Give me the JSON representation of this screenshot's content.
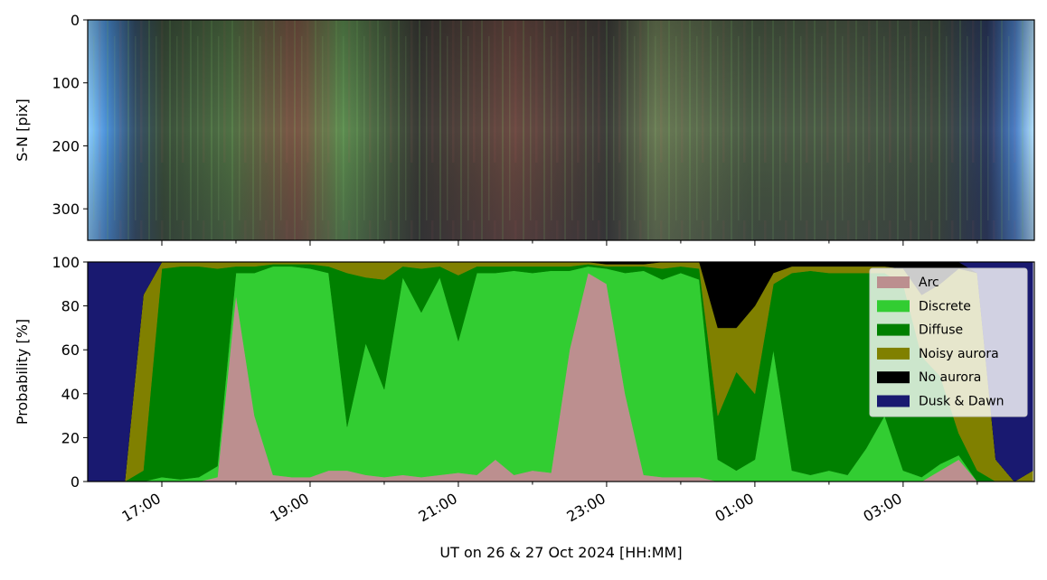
{
  "chart_data": [
    {
      "type": "image",
      "ylabel": "S-N [pix]",
      "ylim": [
        350,
        0
      ],
      "yticks": [
        0,
        100,
        200,
        300
      ],
      "xlim": [
        16,
        28.77
      ],
      "xticks": [
        17,
        19,
        21,
        23,
        25,
        27
      ],
      "xminorticks": [
        18,
        20,
        22,
        24,
        26,
        28
      ]
    },
    {
      "type": "stacked-area",
      "ylabel": "Probability [%]",
      "xlabel": "UT on 26 & 27 Oct 2024 [HH:MM]",
      "xlim": [
        16,
        28.77
      ],
      "xticks": [
        {
          "value": 17,
          "label": "17:00"
        },
        {
          "value": 19,
          "label": "19:00"
        },
        {
          "value": 21,
          "label": "21:00"
        },
        {
          "value": 23,
          "label": "23:00"
        },
        {
          "value": 25,
          "label": "01:00"
        },
        {
          "value": 27,
          "label": "03:00"
        }
      ],
      "xminorticks": [
        18,
        20,
        22,
        24,
        26,
        28
      ],
      "ylim": [
        0,
        100
      ],
      "yticks": [
        0,
        20,
        40,
        60,
        80,
        100
      ],
      "legend": "upper right",
      "x": [
        16,
        16.25,
        16.5,
        16.75,
        17,
        17.25,
        17.5,
        17.75,
        18,
        18.25,
        18.5,
        18.75,
        19,
        19.25,
        19.5,
        19.75,
        20,
        20.25,
        20.5,
        20.75,
        21,
        21.25,
        21.5,
        21.75,
        22,
        22.25,
        22.5,
        22.75,
        23,
        23.25,
        23.5,
        23.75,
        24,
        24.25,
        24.5,
        24.75,
        25,
        25.25,
        25.5,
        25.75,
        26,
        26.25,
        26.5,
        26.75,
        27,
        27.25,
        27.5,
        27.75,
        28,
        28.25,
        28.5,
        28.75
      ],
      "series": [
        {
          "name": "Arc",
          "color": "#bc8f8f",
          "values": [
            0,
            0,
            0,
            0,
            0,
            0,
            0,
            2,
            85,
            30,
            3,
            2,
            2,
            5,
            5,
            3,
            2,
            3,
            2,
            3,
            4,
            3,
            10,
            3,
            5,
            4,
            60,
            95,
            90,
            40,
            3,
            2,
            2,
            2,
            0,
            0,
            0,
            0,
            0,
            0,
            0,
            0,
            0,
            0,
            0,
            0,
            5,
            10,
            0,
            0,
            0,
            0
          ]
        },
        {
          "name": "Discrete",
          "color": "#32cd32",
          "values": [
            0,
            0,
            0,
            0,
            2,
            1,
            2,
            5,
            10,
            65,
            95,
            96,
            95,
            90,
            20,
            60,
            40,
            90,
            75,
            90,
            60,
            92,
            85,
            93,
            90,
            92,
            36,
            3,
            7,
            55,
            93,
            90,
            93,
            90,
            10,
            5,
            10,
            60,
            5,
            3,
            5,
            3,
            15,
            30,
            5,
            2,
            3,
            2,
            0,
            0,
            0,
            0
          ]
        },
        {
          "name": "Diffuse",
          "color": "#008000",
          "values": [
            0,
            0,
            0,
            5,
            95,
            97,
            96,
            90,
            3,
            3,
            1,
            1,
            2,
            3,
            70,
            30,
            50,
            5,
            20,
            5,
            30,
            3,
            3,
            2,
            3,
            2,
            2,
            1,
            1,
            3,
            2,
            5,
            3,
            5,
            20,
            45,
            30,
            30,
            90,
            93,
            90,
            92,
            80,
            65,
            85,
            55,
            40,
            10,
            5,
            0,
            0,
            0
          ]
        },
        {
          "name": "Noisy aurora",
          "color": "#808000",
          "values": [
            0,
            0,
            0,
            80,
            3,
            2,
            2,
            3,
            2,
            2,
            1,
            1,
            1,
            2,
            5,
            7,
            8,
            2,
            3,
            2,
            6,
            2,
            2,
            2,
            2,
            2,
            2,
            1,
            1,
            1,
            1,
            3,
            2,
            3,
            40,
            20,
            40,
            5,
            3,
            2,
            3,
            3,
            3,
            3,
            7,
            28,
            42,
            75,
            90,
            10,
            0,
            5
          ]
        },
        {
          "name": "No aurora",
          "color": "#000000",
          "values": [
            0,
            0,
            0,
            0,
            0,
            0,
            0,
            0,
            0,
            0,
            0,
            0,
            0,
            0,
            0,
            0,
            0,
            0,
            0,
            0,
            0,
            0,
            0,
            0,
            0,
            0,
            0,
            0,
            1,
            1,
            1,
            0,
            0,
            0,
            30,
            30,
            20,
            5,
            2,
            2,
            2,
            2,
            2,
            2,
            3,
            15,
            10,
            3,
            0,
            0,
            0,
            0
          ]
        },
        {
          "name": "Dusk & Dawn",
          "color": "#191970",
          "values": [
            100,
            100,
            100,
            15,
            0,
            0,
            0,
            0,
            0,
            0,
            0,
            0,
            0,
            0,
            0,
            0,
            0,
            0,
            0,
            0,
            0,
            0,
            0,
            0,
            0,
            0,
            0,
            0,
            0,
            0,
            0,
            0,
            0,
            0,
            0,
            0,
            0,
            0,
            0,
            0,
            0,
            0,
            0,
            0,
            0,
            0,
            0,
            0,
            5,
            90,
            100,
            95
          ]
        }
      ]
    }
  ]
}
